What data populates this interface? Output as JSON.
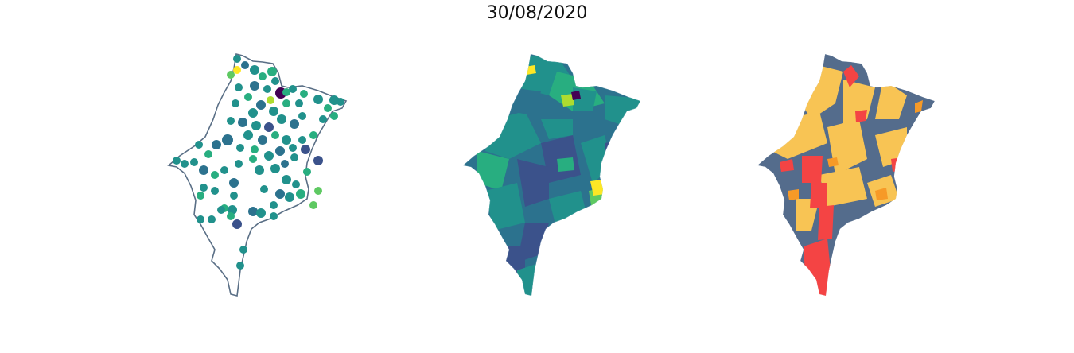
{
  "figure": {
    "title": "30/08/2020"
  },
  "panels": [
    {
      "kind": "point-map",
      "outline_color": "#5a6f86"
    },
    {
      "kind": "choropleth-viridis"
    },
    {
      "kind": "choropleth-categorical"
    }
  ],
  "colors": {
    "background": "#ffffff",
    "outline": "#5a6f86",
    "viridis": [
      "#440154",
      "#3b528b",
      "#2c728e",
      "#21918c",
      "#28ae80",
      "#5ec962",
      "#addc30",
      "#fde725"
    ],
    "categorical": {
      "slate": "#546c8c",
      "yellow": "#f8c454",
      "orange": "#f79a27",
      "red": "#f44444"
    }
  }
}
